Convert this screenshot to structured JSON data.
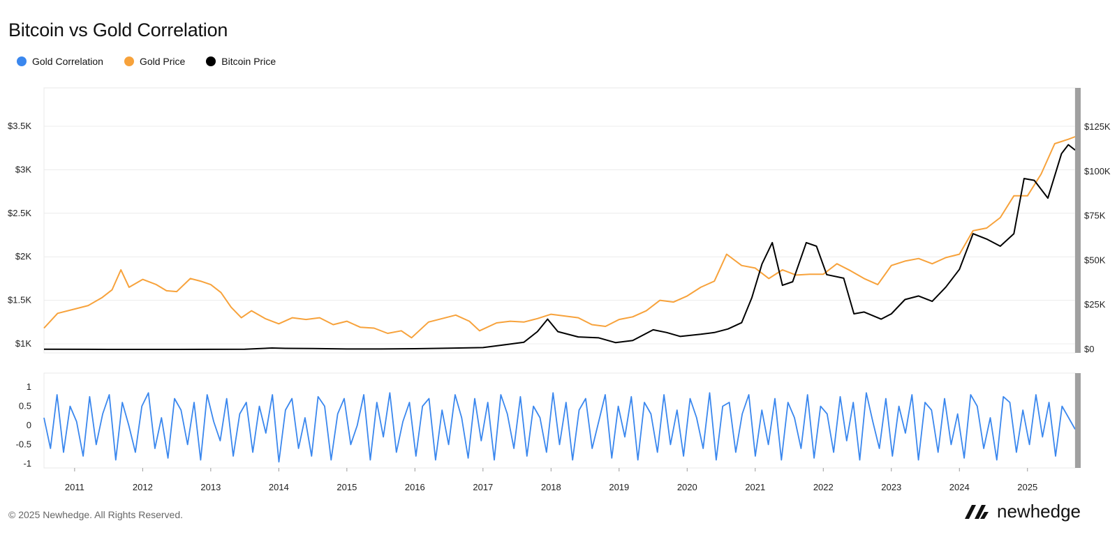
{
  "chart_data": {
    "type": "line",
    "title": "Bitcoin vs Gold Correlation",
    "legend": {
      "placement": "top-left",
      "entries": [
        {
          "name": "Gold Correlation",
          "color": "#3a87ee"
        },
        {
          "name": "Gold Price",
          "color": "#f7a23b"
        },
        {
          "name": "Bitcoin Price",
          "color": "#000000"
        }
      ]
    },
    "x_ticks": [
      "2011",
      "2012",
      "2013",
      "2014",
      "2015",
      "2016",
      "2017",
      "2018",
      "2019",
      "2020",
      "2021",
      "2022",
      "2023",
      "2024",
      "2025"
    ],
    "x_range": [
      2010.55,
      2025.7
    ],
    "price_panel": {
      "left_axis": {
        "range": [
          1000,
          3500
        ],
        "ticks": [
          "$1K",
          "$1.5K",
          "$2K",
          "$2.5K",
          "$3K",
          "$3.5K"
        ],
        "values": [
          1000,
          1500,
          2000,
          2500,
          3000,
          3500
        ]
      },
      "right_axis": {
        "range": [
          0,
          125000
        ],
        "ticks": [
          "$0",
          "$25K",
          "$50K",
          "$75K",
          "$100K",
          "$125K"
        ],
        "values": [
          0,
          25000,
          50000,
          75000,
          100000,
          125000
        ]
      },
      "gridlines": true,
      "series": [
        {
          "name": "Gold Price",
          "axis": "left",
          "color": "#f7a23b",
          "x": [
            2010.55,
            2010.75,
            2011.0,
            2011.2,
            2011.4,
            2011.55,
            2011.68,
            2011.8,
            2012.0,
            2012.2,
            2012.35,
            2012.5,
            2012.7,
            2012.85,
            2013.0,
            2013.15,
            2013.3,
            2013.45,
            2013.6,
            2013.8,
            2014.0,
            2014.2,
            2014.4,
            2014.6,
            2014.8,
            2015.0,
            2015.2,
            2015.4,
            2015.6,
            2015.8,
            2015.95,
            2016.2,
            2016.4,
            2016.6,
            2016.8,
            2016.95,
            2017.2,
            2017.4,
            2017.6,
            2017.8,
            2018.0,
            2018.2,
            2018.4,
            2018.6,
            2018.8,
            2019.0,
            2019.2,
            2019.4,
            2019.6,
            2019.8,
            2020.0,
            2020.2,
            2020.4,
            2020.58,
            2020.8,
            2021.0,
            2021.2,
            2021.4,
            2021.6,
            2021.8,
            2022.0,
            2022.2,
            2022.4,
            2022.6,
            2022.8,
            2023.0,
            2023.2,
            2023.4,
            2023.6,
            2023.8,
            2024.0,
            2024.2,
            2024.4,
            2024.6,
            2024.8,
            2025.0,
            2025.2,
            2025.4,
            2025.6,
            2025.7
          ],
          "y": [
            1180,
            1350,
            1400,
            1440,
            1530,
            1620,
            1850,
            1650,
            1740,
            1680,
            1610,
            1600,
            1750,
            1720,
            1680,
            1590,
            1420,
            1300,
            1380,
            1290,
            1230,
            1300,
            1280,
            1300,
            1220,
            1260,
            1190,
            1180,
            1120,
            1150,
            1070,
            1250,
            1290,
            1330,
            1260,
            1150,
            1240,
            1260,
            1250,
            1290,
            1340,
            1320,
            1300,
            1220,
            1200,
            1280,
            1310,
            1380,
            1500,
            1480,
            1550,
            1650,
            1720,
            2030,
            1900,
            1870,
            1750,
            1850,
            1790,
            1800,
            1800,
            1920,
            1840,
            1750,
            1680,
            1900,
            1950,
            1980,
            1920,
            1990,
            2030,
            2300,
            2330,
            2450,
            2700,
            2700,
            2950,
            3300,
            3350,
            3380
          ]
        },
        {
          "name": "Bitcoin Price",
          "axis": "right",
          "color": "#000000",
          "x": [
            2010.55,
            2011.5,
            2012.5,
            2013.5,
            2013.9,
            2014.1,
            2014.5,
            2015.0,
            2015.5,
            2016.0,
            2016.5,
            2017.0,
            2017.3,
            2017.6,
            2017.8,
            2017.95,
            2018.1,
            2018.4,
            2018.7,
            2018.95,
            2019.2,
            2019.5,
            2019.7,
            2019.9,
            2020.2,
            2020.4,
            2020.6,
            2020.8,
            2020.95,
            2021.1,
            2021.25,
            2021.4,
            2021.55,
            2021.75,
            2021.9,
            2022.05,
            2022.3,
            2022.45,
            2022.6,
            2022.85,
            2023.0,
            2023.2,
            2023.4,
            2023.6,
            2023.8,
            2024.0,
            2024.2,
            2024.4,
            2024.6,
            2024.8,
            2024.95,
            2025.1,
            2025.3,
            2025.5,
            2025.6,
            2025.7
          ],
          "y": [
            100,
            5,
            10,
            120,
            800,
            600,
            500,
            250,
            230,
            400,
            650,
            1000,
            2500,
            4000,
            10000,
            17000,
            10000,
            7000,
            6500,
            3800,
            5000,
            11000,
            9500,
            7300,
            8500,
            9500,
            11500,
            15000,
            29000,
            48000,
            60000,
            36000,
            38000,
            60000,
            58000,
            42000,
            40000,
            20000,
            21000,
            17000,
            20000,
            28000,
            30000,
            27000,
            35000,
            45000,
            65000,
            62000,
            58000,
            65000,
            96000,
            95000,
            85000,
            110000,
            115000,
            112000
          ]
        }
      ]
    },
    "correlation_panel": {
      "axis": {
        "range": [
          -1,
          1
        ],
        "ticks": [
          "-1",
          "-0.5",
          "0",
          "0.5",
          "1"
        ],
        "values": [
          -1,
          -0.5,
          0,
          0.5,
          1
        ]
      },
      "series": [
        {
          "name": "Gold Correlation",
          "color": "#3a87ee",
          "x_start": 2010.55,
          "x_end": 2025.7,
          "y": [
            0.2,
            -0.6,
            0.8,
            -0.7,
            0.5,
            0.1,
            -0.8,
            0.75,
            -0.5,
            0.3,
            0.8,
            -0.9,
            0.6,
            0.0,
            -0.7,
            0.5,
            0.85,
            -0.6,
            0.2,
            -0.85,
            0.7,
            0.4,
            -0.5,
            0.6,
            -0.9,
            0.8,
            0.1,
            -0.4,
            0.7,
            -0.8,
            0.3,
            0.6,
            -0.7,
            0.5,
            -0.2,
            0.8,
            -0.95,
            0.4,
            0.7,
            -0.6,
            0.2,
            -0.8,
            0.75,
            0.5,
            -0.9,
            0.3,
            0.7,
            -0.5,
            0.0,
            0.8,
            -0.9,
            0.6,
            -0.3,
            0.85,
            -0.7,
            0.1,
            0.6,
            -0.8,
            0.5,
            0.7,
            -0.9,
            0.4,
            -0.5,
            0.8,
            0.2,
            -0.85,
            0.7,
            -0.4,
            0.6,
            -0.9,
            0.8,
            0.3,
            -0.6,
            0.75,
            -0.8,
            0.5,
            0.2,
            -0.7,
            0.85,
            -0.5,
            0.6,
            -0.9,
            0.4,
            0.7,
            -0.6,
            0.1,
            0.8,
            -0.85,
            0.5,
            -0.3,
            0.75,
            -0.9,
            0.6,
            0.3,
            -0.7,
            0.8,
            -0.5,
            0.4,
            -0.8,
            0.7,
            0.2,
            -0.6,
            0.85,
            -0.9,
            0.5,
            0.6,
            -0.7,
            0.3,
            0.8,
            -0.8,
            0.4,
            -0.5,
            0.7,
            -0.9,
            0.6,
            0.2,
            -0.6,
            0.8,
            -0.85,
            0.5,
            0.3,
            -0.7,
            0.75,
            -0.4,
            0.6,
            -0.9,
            0.85,
            0.1,
            -0.6,
            0.7,
            -0.8,
            0.5,
            -0.2,
            0.8,
            -0.9,
            0.6,
            0.4,
            -0.7,
            0.7,
            -0.5,
            0.3,
            -0.85,
            0.8,
            0.5,
            -0.6,
            0.2,
            -0.9,
            0.75,
            0.6,
            -0.7,
            0.4,
            -0.5,
            0.8,
            -0.3,
            0.6,
            -0.8,
            0.5,
            0.2,
            -0.1
          ]
        }
      ]
    }
  },
  "footer": {
    "copyright": "© 2025 Newhedge. All Rights Reserved."
  },
  "brand": {
    "name": "newhedge"
  }
}
